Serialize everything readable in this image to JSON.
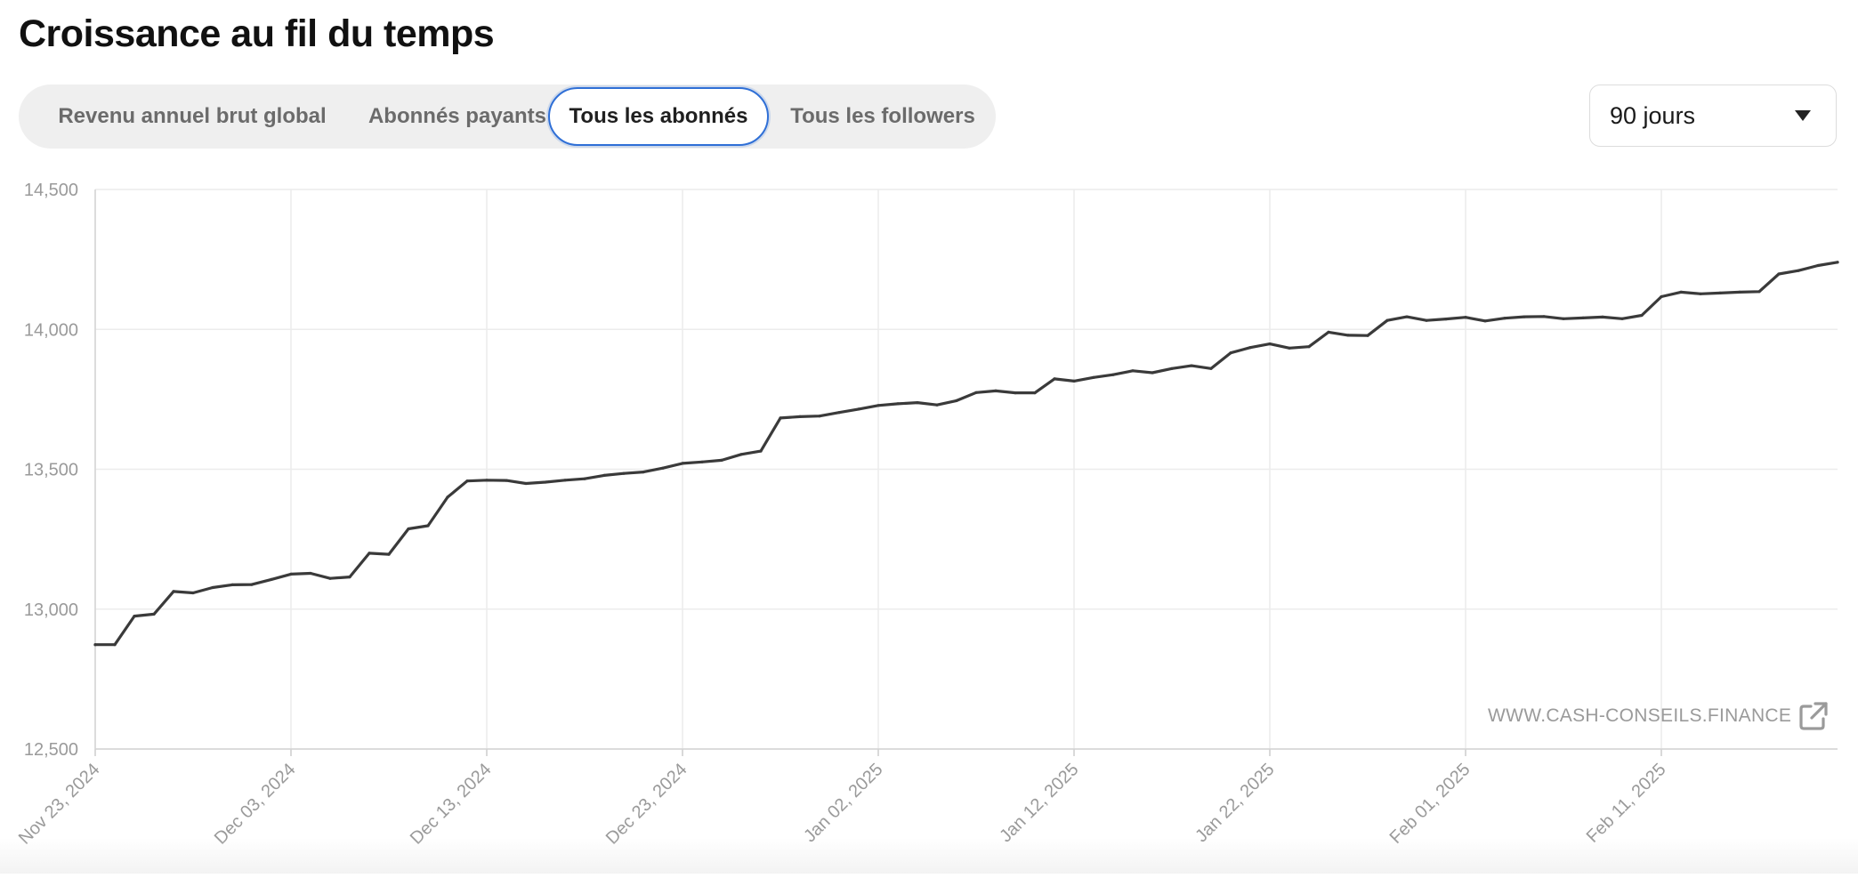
{
  "header": {
    "title": "Croissance au fil du temps"
  },
  "tabs": [
    {
      "label": "Revenu annuel brut global",
      "active": false
    },
    {
      "label": "Abonnés payants",
      "active": false
    },
    {
      "label": "Tous les abonnés",
      "active": true
    },
    {
      "label": "Tous les followers",
      "active": false
    }
  ],
  "period_select": {
    "value": "90 jours",
    "icon": "caret-down-icon"
  },
  "watermark": {
    "text": "WWW.CASH-CONSEILS.FINANCE",
    "icon": "external-link-icon"
  },
  "colors": {
    "line": "#3a3a3a",
    "active_tab_border": "#2f6fd6",
    "grid": "#ececec",
    "axis_text": "#9a9a9a"
  },
  "chart_data": {
    "type": "line",
    "title": "",
    "xlabel": "",
    "ylabel": "",
    "ylim": [
      12500,
      14500
    ],
    "yticks": [
      12500,
      13000,
      13500,
      14000,
      14500
    ],
    "ytick_labels": [
      "12,500",
      "13,000",
      "13,500",
      "14,000",
      "14,500"
    ],
    "xticks": [
      "2024-11-23",
      "2024-12-03",
      "2024-12-13",
      "2024-12-23",
      "2025-01-02",
      "2025-01-12",
      "2025-01-22",
      "2025-02-01",
      "2025-02-11"
    ],
    "xtick_labels": [
      "Nov 23, 2024",
      "Dec 03, 2024",
      "Dec 13, 2024",
      "Dec 23, 2024",
      "Jan 02, 2025",
      "Jan 12, 2025",
      "Jan 22, 2025",
      "Feb 01, 2025",
      "Feb 11, 2025"
    ],
    "xlim": [
      "2024-11-23",
      "2025-02-20"
    ],
    "grid": true,
    "series": [
      {
        "values": [
          [
            "2024-11-23",
            12873
          ],
          [
            "2024-11-24",
            12873
          ],
          [
            "2024-11-25",
            12975
          ],
          [
            "2024-11-26",
            12982
          ],
          [
            "2024-11-27",
            13063
          ],
          [
            "2024-11-28",
            13058
          ],
          [
            "2024-11-29",
            13077
          ],
          [
            "2024-11-30",
            13087
          ],
          [
            "2024-12-01",
            13088
          ],
          [
            "2024-12-02",
            13106
          ],
          [
            "2024-12-03",
            13125
          ],
          [
            "2024-12-04",
            13128
          ],
          [
            "2024-12-05",
            13110
          ],
          [
            "2024-12-06",
            13115
          ],
          [
            "2024-12-07",
            13200
          ],
          [
            "2024-12-08",
            13196
          ],
          [
            "2024-12-09",
            13287
          ],
          [
            "2024-12-10",
            13298
          ],
          [
            "2024-12-11",
            13400
          ],
          [
            "2024-12-12",
            13458
          ],
          [
            "2024-12-13",
            13461
          ],
          [
            "2024-12-14",
            13460
          ],
          [
            "2024-12-15",
            13449
          ],
          [
            "2024-12-16",
            13454
          ],
          [
            "2024-12-17",
            13461
          ],
          [
            "2024-12-18",
            13466
          ],
          [
            "2024-12-19",
            13478
          ],
          [
            "2024-12-20",
            13485
          ],
          [
            "2024-12-21",
            13490
          ],
          [
            "2024-12-22",
            13504
          ],
          [
            "2024-12-23",
            13521
          ],
          [
            "2024-12-24",
            13526
          ],
          [
            "2024-12-25",
            13532
          ],
          [
            "2024-12-26",
            13553
          ],
          [
            "2024-12-27",
            13565
          ],
          [
            "2024-12-28",
            13683
          ],
          [
            "2024-12-29",
            13688
          ],
          [
            "2024-12-30",
            13690
          ],
          [
            "2024-12-31",
            13703
          ],
          [
            "2025-01-01",
            13715
          ],
          [
            "2025-01-02",
            13728
          ],
          [
            "2025-01-03",
            13734
          ],
          [
            "2025-01-04",
            13738
          ],
          [
            "2025-01-05",
            13730
          ],
          [
            "2025-01-06",
            13745
          ],
          [
            "2025-01-07",
            13774
          ],
          [
            "2025-01-08",
            13780
          ],
          [
            "2025-01-09",
            13773
          ],
          [
            "2025-01-10",
            13773
          ],
          [
            "2025-01-11",
            13823
          ],
          [
            "2025-01-12",
            13815
          ],
          [
            "2025-01-13",
            13828
          ],
          [
            "2025-01-14",
            13838
          ],
          [
            "2025-01-15",
            13852
          ],
          [
            "2025-01-16",
            13845
          ],
          [
            "2025-01-17",
            13860
          ],
          [
            "2025-01-18",
            13870
          ],
          [
            "2025-01-19",
            13860
          ],
          [
            "2025-01-20",
            13916
          ],
          [
            "2025-01-21",
            13935
          ],
          [
            "2025-01-22",
            13948
          ],
          [
            "2025-01-23",
            13933
          ],
          [
            "2025-01-24",
            13938
          ],
          [
            "2025-01-25",
            13990
          ],
          [
            "2025-01-26",
            13979
          ],
          [
            "2025-01-27",
            13978
          ],
          [
            "2025-01-28",
            14032
          ],
          [
            "2025-01-29",
            14045
          ],
          [
            "2025-01-30",
            14032
          ],
          [
            "2025-01-31",
            14037
          ],
          [
            "2025-02-01",
            14043
          ],
          [
            "2025-02-02",
            14030
          ],
          [
            "2025-02-03",
            14040
          ],
          [
            "2025-02-04",
            14045
          ],
          [
            "2025-02-05",
            14046
          ],
          [
            "2025-02-06",
            14038
          ],
          [
            "2025-02-07",
            14041
          ],
          [
            "2025-02-08",
            14044
          ],
          [
            "2025-02-09",
            14038
          ],
          [
            "2025-02-10",
            14050
          ],
          [
            "2025-02-11",
            14117
          ],
          [
            "2025-02-12",
            14133
          ],
          [
            "2025-02-13",
            14127
          ],
          [
            "2025-02-14",
            14130
          ],
          [
            "2025-02-15",
            14133
          ],
          [
            "2025-02-16",
            14135
          ],
          [
            "2025-02-17",
            14198
          ],
          [
            "2025-02-18",
            14210
          ],
          [
            "2025-02-19",
            14228
          ],
          [
            "2025-02-20",
            14240
          ]
        ]
      }
    ]
  }
}
